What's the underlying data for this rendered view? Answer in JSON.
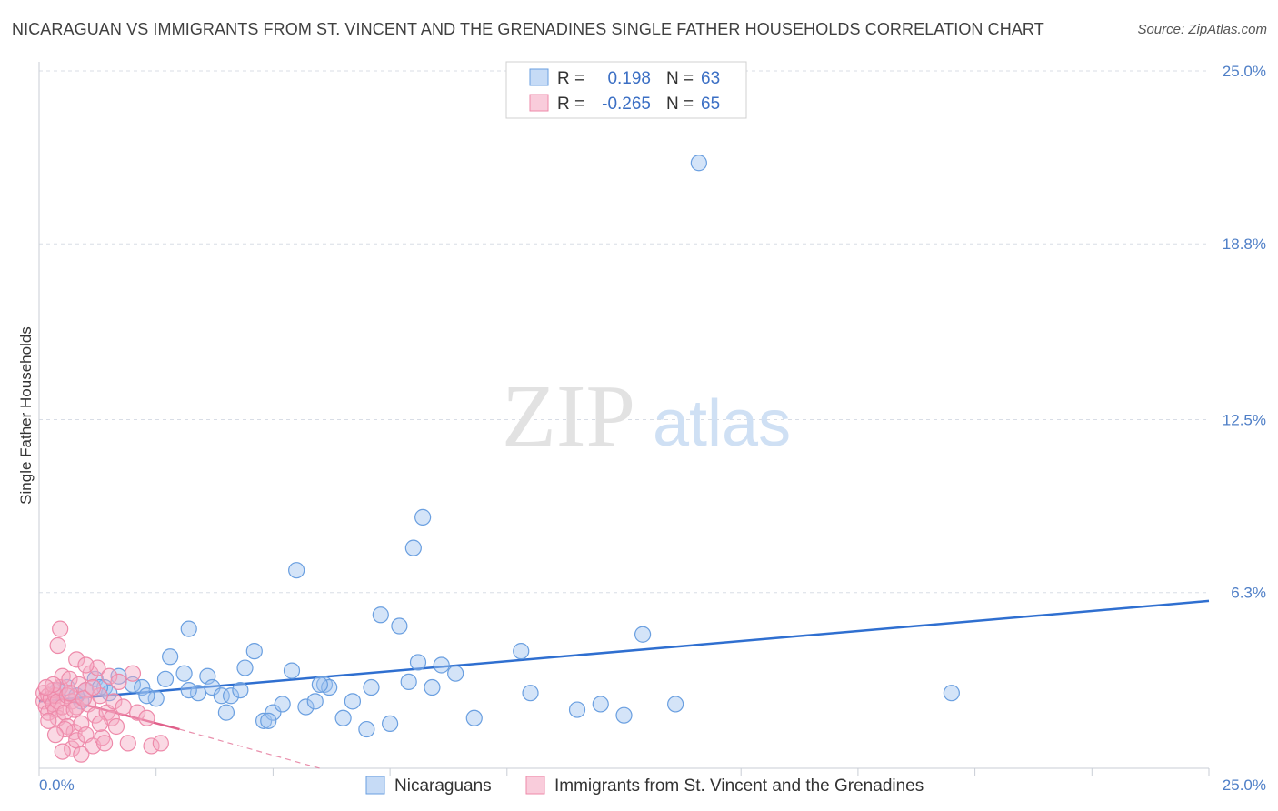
{
  "header": {
    "title": "NICARAGUAN VS IMMIGRANTS FROM ST. VINCENT AND THE GRENADINES SINGLE FATHER HOUSEHOLDS CORRELATION CHART",
    "source": "Source: ZipAtlas.com"
  },
  "watermark": {
    "zip": "ZIP",
    "atlas": "atlas"
  },
  "colors": {
    "blue": "#6a9fe0",
    "blue_fill": "rgba(160,195,240,0.45)",
    "blue_line": "#2f6fd0",
    "pink": "#ee8aaa",
    "pink_fill": "rgba(245,170,195,0.45)",
    "pink_line": "#e0608a",
    "grid": "#d8dde6",
    "tick": "#4f7fc7"
  },
  "legend": {
    "r_label": "R =",
    "n_label": "N =",
    "rows": [
      {
        "series": "blue",
        "r": "0.198",
        "n": "63"
      },
      {
        "series": "pink",
        "r": "-0.265",
        "n": "65"
      }
    ]
  },
  "chart_data": {
    "type": "scatter",
    "title": "NICARAGUAN VS IMMIGRANTS FROM ST. VINCENT AND THE GRENADINES SINGLE FATHER HOUSEHOLDS CORRELATION CHART",
    "xlabel": "",
    "ylabel": "Single Father Households",
    "xlim": [
      0,
      25
    ],
    "ylim": [
      0,
      25
    ],
    "x_tick_labels": [
      "0.0%",
      "25.0%"
    ],
    "y_ticks": [
      6.3,
      12.5,
      18.8,
      25.0
    ],
    "y_tick_labels": [
      "6.3%",
      "12.5%",
      "18.8%",
      "25.0%"
    ],
    "grid": true,
    "legend_position": "top-center",
    "series": [
      {
        "name": "Nicaraguans",
        "color": "#6a9fe0",
        "trend": {
          "x": [
            0,
            25
          ],
          "y": [
            2.4,
            6.0
          ],
          "style": "solid"
        },
        "points": [
          [
            0.4,
            2.8
          ],
          [
            0.6,
            2.9
          ],
          [
            0.9,
            2.4
          ],
          [
            1.0,
            2.8
          ],
          [
            1.2,
            3.2
          ],
          [
            1.4,
            2.9
          ],
          [
            1.5,
            2.7
          ],
          [
            1.7,
            3.3
          ],
          [
            2.0,
            3.0
          ],
          [
            2.2,
            2.9
          ],
          [
            2.5,
            2.5
          ],
          [
            2.7,
            3.2
          ],
          [
            2.8,
            4.0
          ],
          [
            3.1,
            3.4
          ],
          [
            3.2,
            5.0
          ],
          [
            3.4,
            2.7
          ],
          [
            3.6,
            3.3
          ],
          [
            3.7,
            2.9
          ],
          [
            3.9,
            2.6
          ],
          [
            4.0,
            2.0
          ],
          [
            4.1,
            2.6
          ],
          [
            4.3,
            2.8
          ],
          [
            4.4,
            3.6
          ],
          [
            4.6,
            4.2
          ],
          [
            4.8,
            1.7
          ],
          [
            5.0,
            2.0
          ],
          [
            5.2,
            2.3
          ],
          [
            5.4,
            3.5
          ],
          [
            5.5,
            7.1
          ],
          [
            5.7,
            2.2
          ],
          [
            5.9,
            2.4
          ],
          [
            6.1,
            3.0
          ],
          [
            6.2,
            2.9
          ],
          [
            6.5,
            1.8
          ],
          [
            6.7,
            2.4
          ],
          [
            7.0,
            1.4
          ],
          [
            7.1,
            2.9
          ],
          [
            7.3,
            5.5
          ],
          [
            7.5,
            1.6
          ],
          [
            7.7,
            5.1
          ],
          [
            7.9,
            3.1
          ],
          [
            8.1,
            3.8
          ],
          [
            8.2,
            9.0
          ],
          [
            8.4,
            2.9
          ],
          [
            8.6,
            3.7
          ],
          [
            8.9,
            3.4
          ],
          [
            9.3,
            1.8
          ],
          [
            10.3,
            4.2
          ],
          [
            10.5,
            2.7
          ],
          [
            11.5,
            2.1
          ],
          [
            12.0,
            2.3
          ],
          [
            12.5,
            1.9
          ],
          [
            12.9,
            4.8
          ],
          [
            13.6,
            2.3
          ],
          [
            14.1,
            21.7
          ],
          [
            8.0,
            7.9
          ],
          [
            3.2,
            2.8
          ],
          [
            6.0,
            3.0
          ],
          [
            19.5,
            2.7
          ],
          [
            4.9,
            1.7
          ],
          [
            1.3,
            2.9
          ],
          [
            2.3,
            2.6
          ],
          [
            0.8,
            2.6
          ]
        ]
      },
      {
        "name": "Immigrants from St. Vincent and the Grenadines",
        "color": "#ee8aaa",
        "trend": {
          "x": [
            0,
            3.0,
            6.0
          ],
          "y": [
            2.7,
            1.4,
            0.0
          ],
          "style": "solid-then-dashed"
        },
        "points": [
          [
            0.1,
            2.4
          ],
          [
            0.1,
            2.7
          ],
          [
            0.15,
            2.2
          ],
          [
            0.2,
            2.6
          ],
          [
            0.2,
            2.0
          ],
          [
            0.25,
            2.5
          ],
          [
            0.3,
            2.3
          ],
          [
            0.3,
            2.8
          ],
          [
            0.35,
            2.1
          ],
          [
            0.35,
            2.6
          ],
          [
            0.4,
            2.4
          ],
          [
            0.4,
            1.8
          ],
          [
            0.45,
            2.9
          ],
          [
            0.5,
            2.2
          ],
          [
            0.5,
            3.3
          ],
          [
            0.55,
            2.0
          ],
          [
            0.6,
            2.6
          ],
          [
            0.6,
            1.5
          ],
          [
            0.65,
            3.2
          ],
          [
            0.7,
            2.4
          ],
          [
            0.7,
            0.7
          ],
          [
            0.75,
            1.3
          ],
          [
            0.8,
            2.2
          ],
          [
            0.8,
            1.0
          ],
          [
            0.85,
            3.0
          ],
          [
            0.9,
            1.6
          ],
          [
            0.9,
            0.5
          ],
          [
            1.0,
            2.8
          ],
          [
            1.0,
            1.2
          ],
          [
            1.05,
            2.3
          ],
          [
            1.1,
            3.4
          ],
          [
            1.15,
            0.8
          ],
          [
            1.2,
            1.9
          ],
          [
            1.25,
            3.6
          ],
          [
            1.3,
            2.6
          ],
          [
            1.35,
            1.1
          ],
          [
            1.4,
            0.9
          ],
          [
            1.45,
            2.0
          ],
          [
            1.5,
            3.3
          ],
          [
            1.55,
            1.8
          ],
          [
            1.6,
            2.4
          ],
          [
            1.65,
            1.5
          ],
          [
            1.7,
            3.1
          ],
          [
            1.8,
            2.2
          ],
          [
            1.9,
            0.9
          ],
          [
            2.0,
            3.4
          ],
          [
            2.1,
            2.0
          ],
          [
            2.3,
            1.8
          ],
          [
            2.4,
            0.8
          ],
          [
            2.6,
            0.9
          ],
          [
            0.4,
            4.4
          ],
          [
            0.45,
            5.0
          ],
          [
            0.8,
            3.9
          ],
          [
            1.0,
            3.7
          ],
          [
            0.3,
            3.0
          ],
          [
            0.2,
            1.7
          ],
          [
            0.55,
            1.4
          ],
          [
            0.65,
            2.7
          ],
          [
            0.75,
            2.1
          ],
          [
            0.95,
            2.5
          ],
          [
            1.15,
            2.9
          ],
          [
            1.3,
            1.6
          ],
          [
            0.15,
            2.9
          ],
          [
            0.5,
            0.6
          ],
          [
            0.35,
            1.2
          ]
        ]
      }
    ]
  },
  "bottom_legend": [
    {
      "label": "Nicaraguans",
      "series": "blue"
    },
    {
      "label": "Immigrants from St. Vincent and the Grenadines",
      "series": "pink"
    }
  ]
}
